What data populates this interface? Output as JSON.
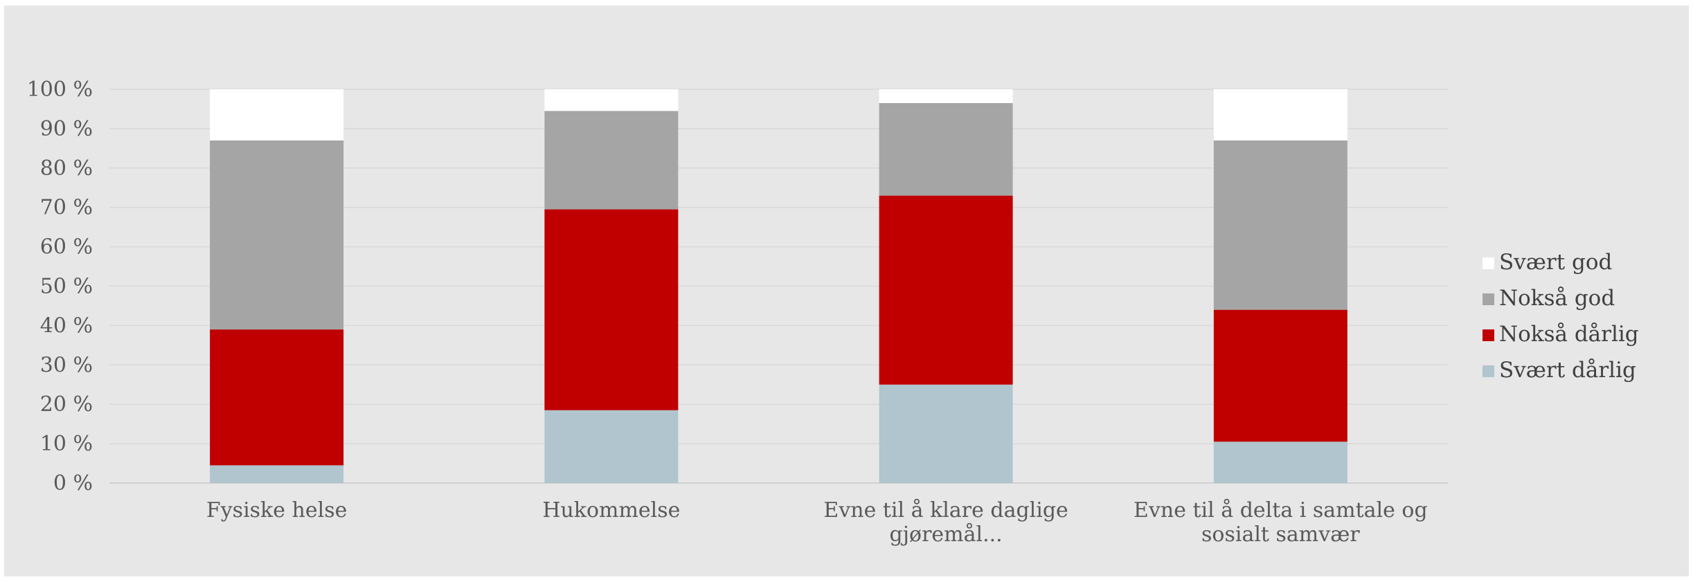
{
  "chart_data": {
    "type": "bar",
    "stacked": true,
    "percent_scale": true,
    "categories": [
      [
        "Fysiske helse"
      ],
      [
        "Hukommelse"
      ],
      [
        "Evne til å klare daglige",
        "gjøremål..."
      ],
      [
        "Evne til å delta i samtale og",
        "sosialt samvær"
      ]
    ],
    "series": [
      {
        "name": "Svært dårlig",
        "color": "#b0c5cd",
        "values": [
          4.5,
          18.5,
          25,
          10.5
        ]
      },
      {
        "name": "Nokså dårlig",
        "color": "#c00000",
        "values": [
          34.5,
          51,
          48,
          33.5
        ]
      },
      {
        "name": "Nokså god",
        "color": "#a5a5a5",
        "values": [
          48,
          25,
          23.5,
          43
        ]
      },
      {
        "name": "Svært god",
        "color": "#ffffff",
        "values": [
          13,
          5.5,
          3.5,
          13
        ]
      }
    ],
    "y_ticks": [
      "0 %",
      "10 %",
      "20 %",
      "30 %",
      "40 %",
      "50 %",
      "60 %",
      "70 %",
      "80 %",
      "90 %",
      "100 %"
    ],
    "ylim": [
      0,
      100
    ],
    "grid": true,
    "legend_position": "right",
    "legend_order": [
      "Svært god",
      "Nokså god",
      "Nokså dårlig",
      "Svært dårlig"
    ]
  }
}
